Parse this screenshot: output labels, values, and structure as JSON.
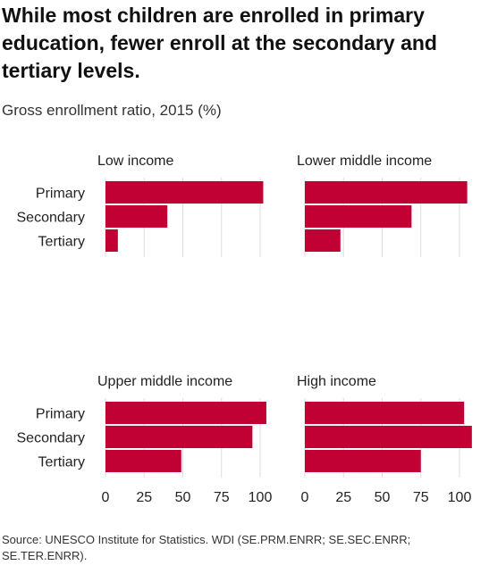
{
  "title": "While most children are enrolled in primary education, fewer enroll at the secondary and tertiary levels.",
  "subtitle": "Gross enrollment ratio, 2015 (%)",
  "source": "Source: UNESCO Institute for Statistics. WDI (SE.PRM.ENRR; SE.SEC.ENRR; SE.TER.ENRR).",
  "colors": {
    "bar": "#c10034",
    "grid": "#dedede"
  },
  "chart_data": {
    "type": "bar",
    "orientation": "horizontal",
    "categories": [
      "Primary",
      "Secondary",
      "Tertiary"
    ],
    "x_ticks": [
      0,
      25,
      50,
      75,
      100
    ],
    "xlim": [
      0,
      107
    ],
    "grid": true,
    "facets": [
      {
        "name": "Low income",
        "values": [
          102,
          40,
          8
        ]
      },
      {
        "name": "Lower middle income",
        "values": [
          105,
          69,
          23
        ]
      },
      {
        "name": "Upper middle income",
        "values": [
          104,
          95,
          49
        ]
      },
      {
        "name": "High income",
        "values": [
          103,
          108,
          75
        ]
      }
    ]
  }
}
